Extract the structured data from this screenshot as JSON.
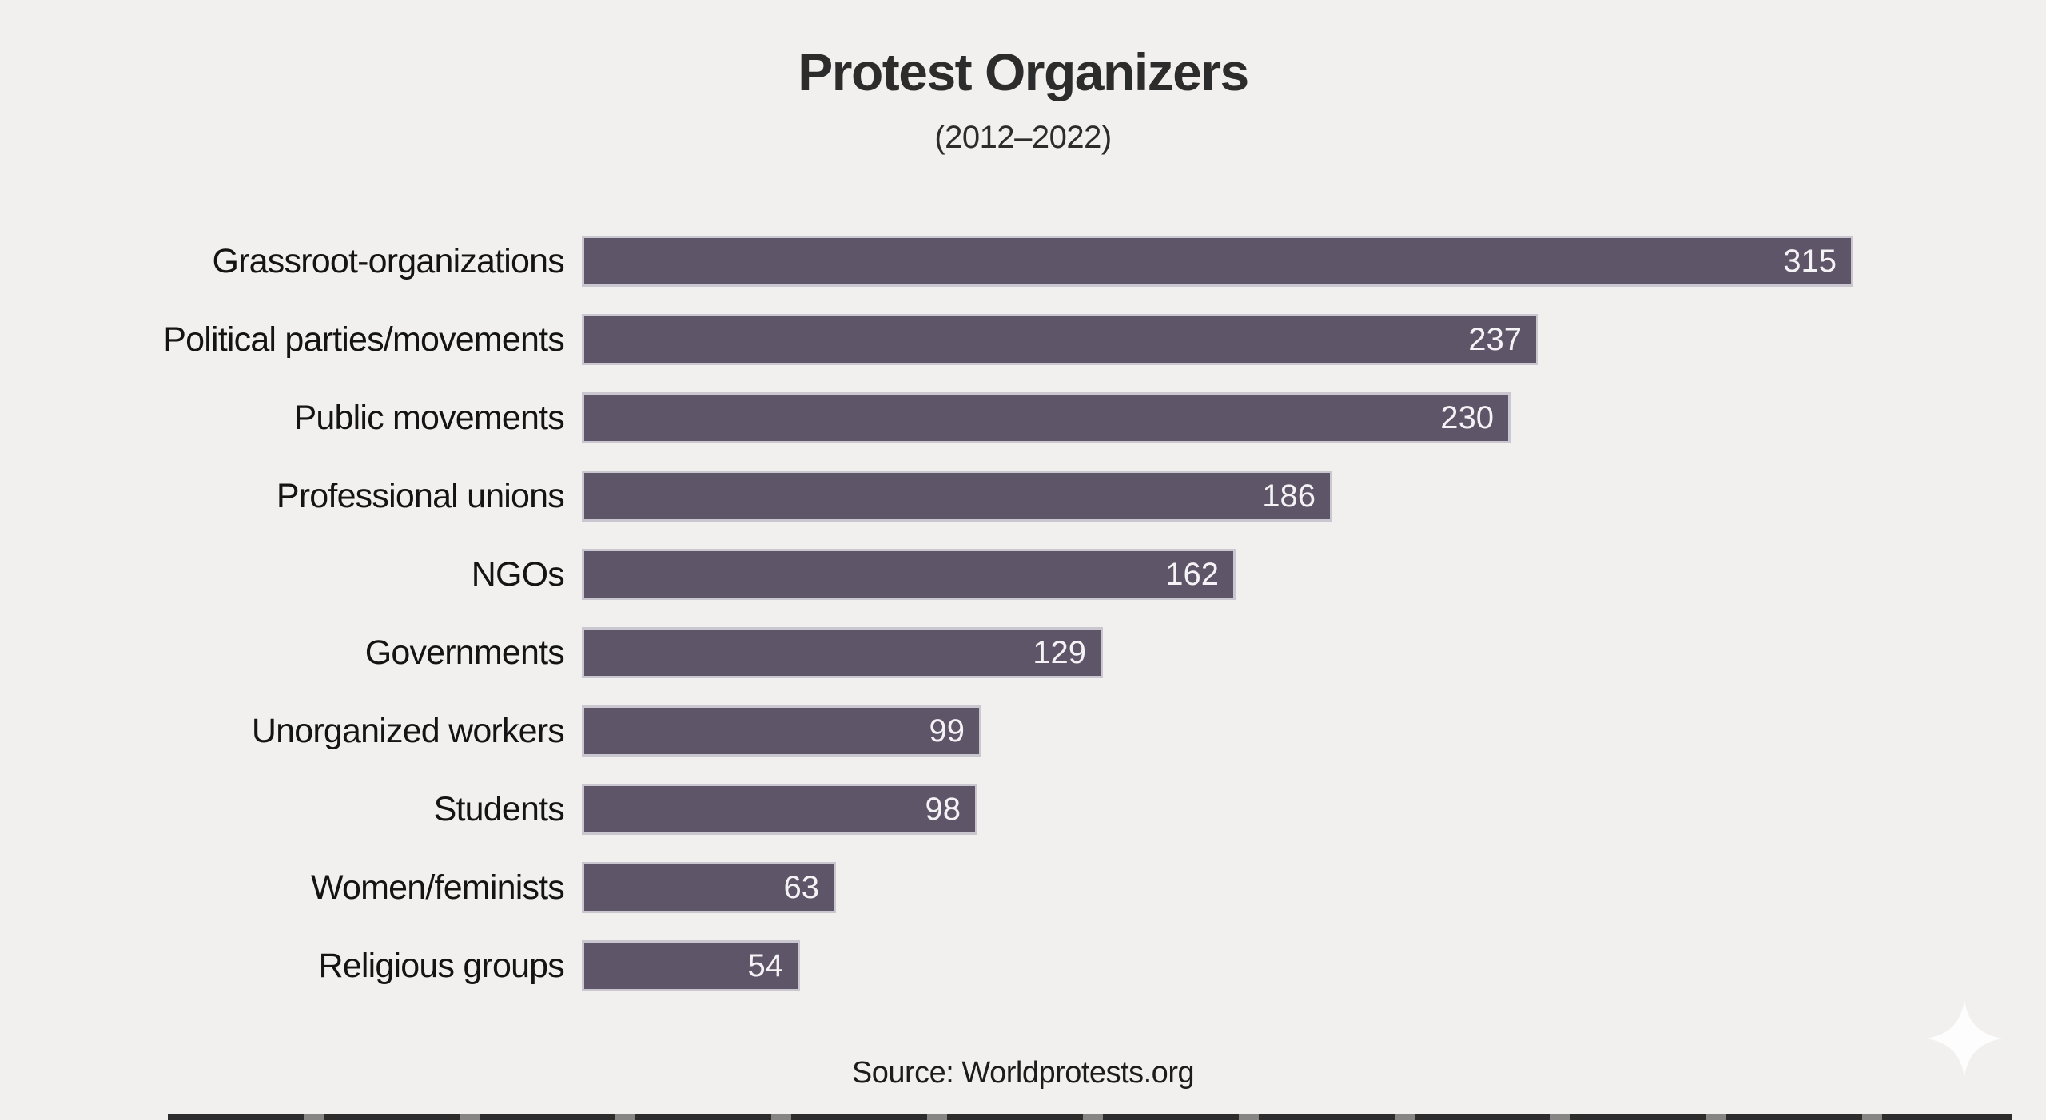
{
  "page": {
    "background_color": "#f1f0ee"
  },
  "header": {
    "title": "Protest Organizers",
    "subtitle": "(2012–2022)"
  },
  "chart_data": {
    "type": "bar",
    "orientation": "horizontal",
    "title": "Protest Organizers",
    "subtitle": "(2012–2022)",
    "categories": [
      "Grassroot-organizations",
      "Political parties/movements",
      "Public movements",
      "Professional unions",
      "NGOs",
      "Governments",
      "Unorganized workers",
      "Students",
      "Women/feminists",
      "Religious groups"
    ],
    "values": [
      315,
      237,
      230,
      186,
      162,
      129,
      99,
      98,
      63,
      54
    ],
    "xlim": [
      0,
      320
    ],
    "grid": false,
    "legend": false,
    "value_labels_position": "inside-end",
    "bar_color": "#5e5668",
    "bar_border_color": "#cbc7d0",
    "value_label_color": "#f4f2f5",
    "category_label_color": "#141414"
  },
  "footer": {
    "source": "Source: Worldprotests.org"
  },
  "icons": {
    "sparkle": "four-pointed-star"
  }
}
